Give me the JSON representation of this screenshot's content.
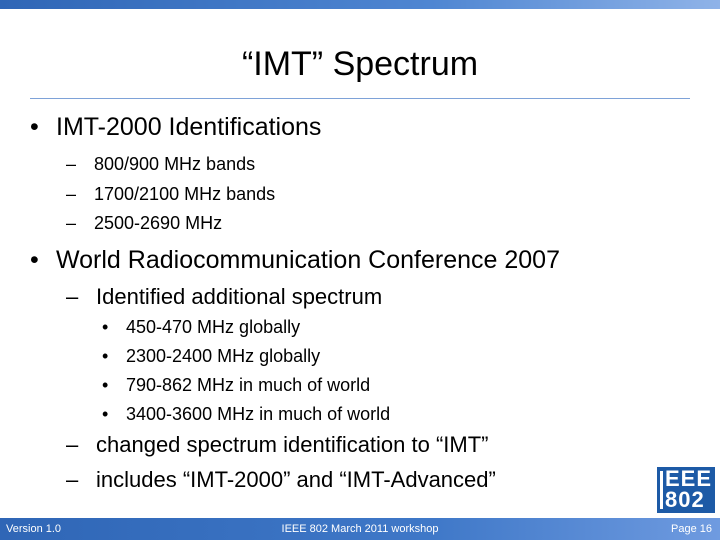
{
  "slide": {
    "title": "“IMT” Spectrum",
    "bullets": [
      {
        "marker": "•",
        "text": "IMT-2000 Identifications",
        "sub": [
          {
            "marker": "–",
            "text": "800/900 MHz bands"
          },
          {
            "marker": "–",
            "text": "1700/2100 MHz bands"
          },
          {
            "marker": "–",
            "text": "2500-2690 MHz"
          }
        ]
      },
      {
        "marker": "•",
        "text": "World Radiocommunication Conference 2007",
        "sub": [
          {
            "marker": "–",
            "text": "Identified additional spectrum",
            "sub": [
              {
                "marker": "•",
                "text": "450-470 MHz globally"
              },
              {
                "marker": "•",
                "text": "2300-2400 MHz globally"
              },
              {
                "marker": "•",
                "text": "790-862 MHz in much of world"
              },
              {
                "marker": "•",
                "text": "3400-3600 MHz in much of world"
              }
            ]
          },
          {
            "marker": "–",
            "text": "changed spectrum identification to “IMT”"
          },
          {
            "marker": "–",
            "text": "includes “IMT-2000” and “IMT-Advanced”"
          }
        ]
      }
    ]
  },
  "logo": {
    "line1": "EEE",
    "line2": "802"
  },
  "footer": {
    "left": "Version 1.0",
    "center": "IEEE 802 March 2011 workshop",
    "right": "Page 16"
  },
  "colors": {
    "accent": "#2f66b6",
    "logo": "#1d5aa6"
  }
}
